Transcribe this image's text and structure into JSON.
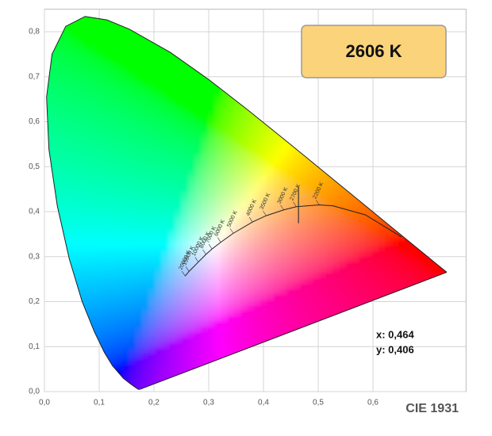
{
  "chart_data": {
    "type": "chromaticity",
    "title": "CIE 1931",
    "badge": "2606 K",
    "xlim": [
      0,
      0.77
    ],
    "ylim": [
      0,
      0.85
    ],
    "grid": true,
    "xticks": [
      {
        "value": 0,
        "label": "0,0"
      },
      {
        "value": 0.1,
        "label": "0,1"
      },
      {
        "value": 0.2,
        "label": "0,2"
      },
      {
        "value": 0.3,
        "label": "0,3"
      },
      {
        "value": 0.4,
        "label": "0,4"
      },
      {
        "value": 0.5,
        "label": "0,5"
      },
      {
        "value": 0.6,
        "label": "0,6"
      }
    ],
    "yticks": [
      {
        "value": 0,
        "label": "0,0"
      },
      {
        "value": 0.1,
        "label": "0,1"
      },
      {
        "value": 0.2,
        "label": "0,2"
      },
      {
        "value": 0.3,
        "label": "0,3"
      },
      {
        "value": 0.4,
        "label": "0,4"
      },
      {
        "value": 0.5,
        "label": "0,5"
      },
      {
        "value": 0.6,
        "label": "0,6"
      },
      {
        "value": 0.7,
        "label": "0,7"
      },
      {
        "value": 0.8,
        "label": "0,8"
      }
    ],
    "spectral_locus": {
      "x": [
        0.1741,
        0.1714,
        0.1644,
        0.1566,
        0.144,
        0.1241,
        0.1096,
        0.0913,
        0.0687,
        0.0454,
        0.0235,
        0.0082,
        0.0039,
        0.0139,
        0.0389,
        0.0743,
        0.1142,
        0.1547,
        0.2296,
        0.3016,
        0.3731,
        0.4441,
        0.5125,
        0.5752,
        0.627,
        0.6915,
        0.719,
        0.7347
      ],
      "y": [
        0.005,
        0.0051,
        0.0109,
        0.0177,
        0.0297,
        0.0578,
        0.0868,
        0.1327,
        0.2007,
        0.295,
        0.4127,
        0.5384,
        0.6548,
        0.7502,
        0.812,
        0.8338,
        0.8262,
        0.8059,
        0.7543,
        0.6923,
        0.6245,
        0.5547,
        0.4866,
        0.4242,
        0.3725,
        0.3083,
        0.2809,
        0.2653
      ]
    },
    "planckian_locus": {
      "labels": [
        "20000 K",
        "15000 K",
        "10000 K",
        "8000 K",
        "7000 K",
        "6000 K",
        "5000 K",
        "4000 K",
        "3500 K",
        "3000 K",
        "2700 K",
        "2200 K",
        null,
        null,
        null
      ],
      "x": [
        0.257,
        0.264,
        0.281,
        0.295,
        0.306,
        0.322,
        0.345,
        0.38,
        0.405,
        0.437,
        0.46,
        0.502,
        0.527,
        0.586,
        0.652
      ],
      "y": [
        0.257,
        0.267,
        0.288,
        0.305,
        0.317,
        0.332,
        0.352,
        0.377,
        0.391,
        0.404,
        0.411,
        0.415,
        0.413,
        0.393,
        0.344
      ]
    },
    "point": {
      "x": 0.464,
      "y": 0.406,
      "x_label": "x: 0,464",
      "y_label": "y: 0,406"
    }
  }
}
